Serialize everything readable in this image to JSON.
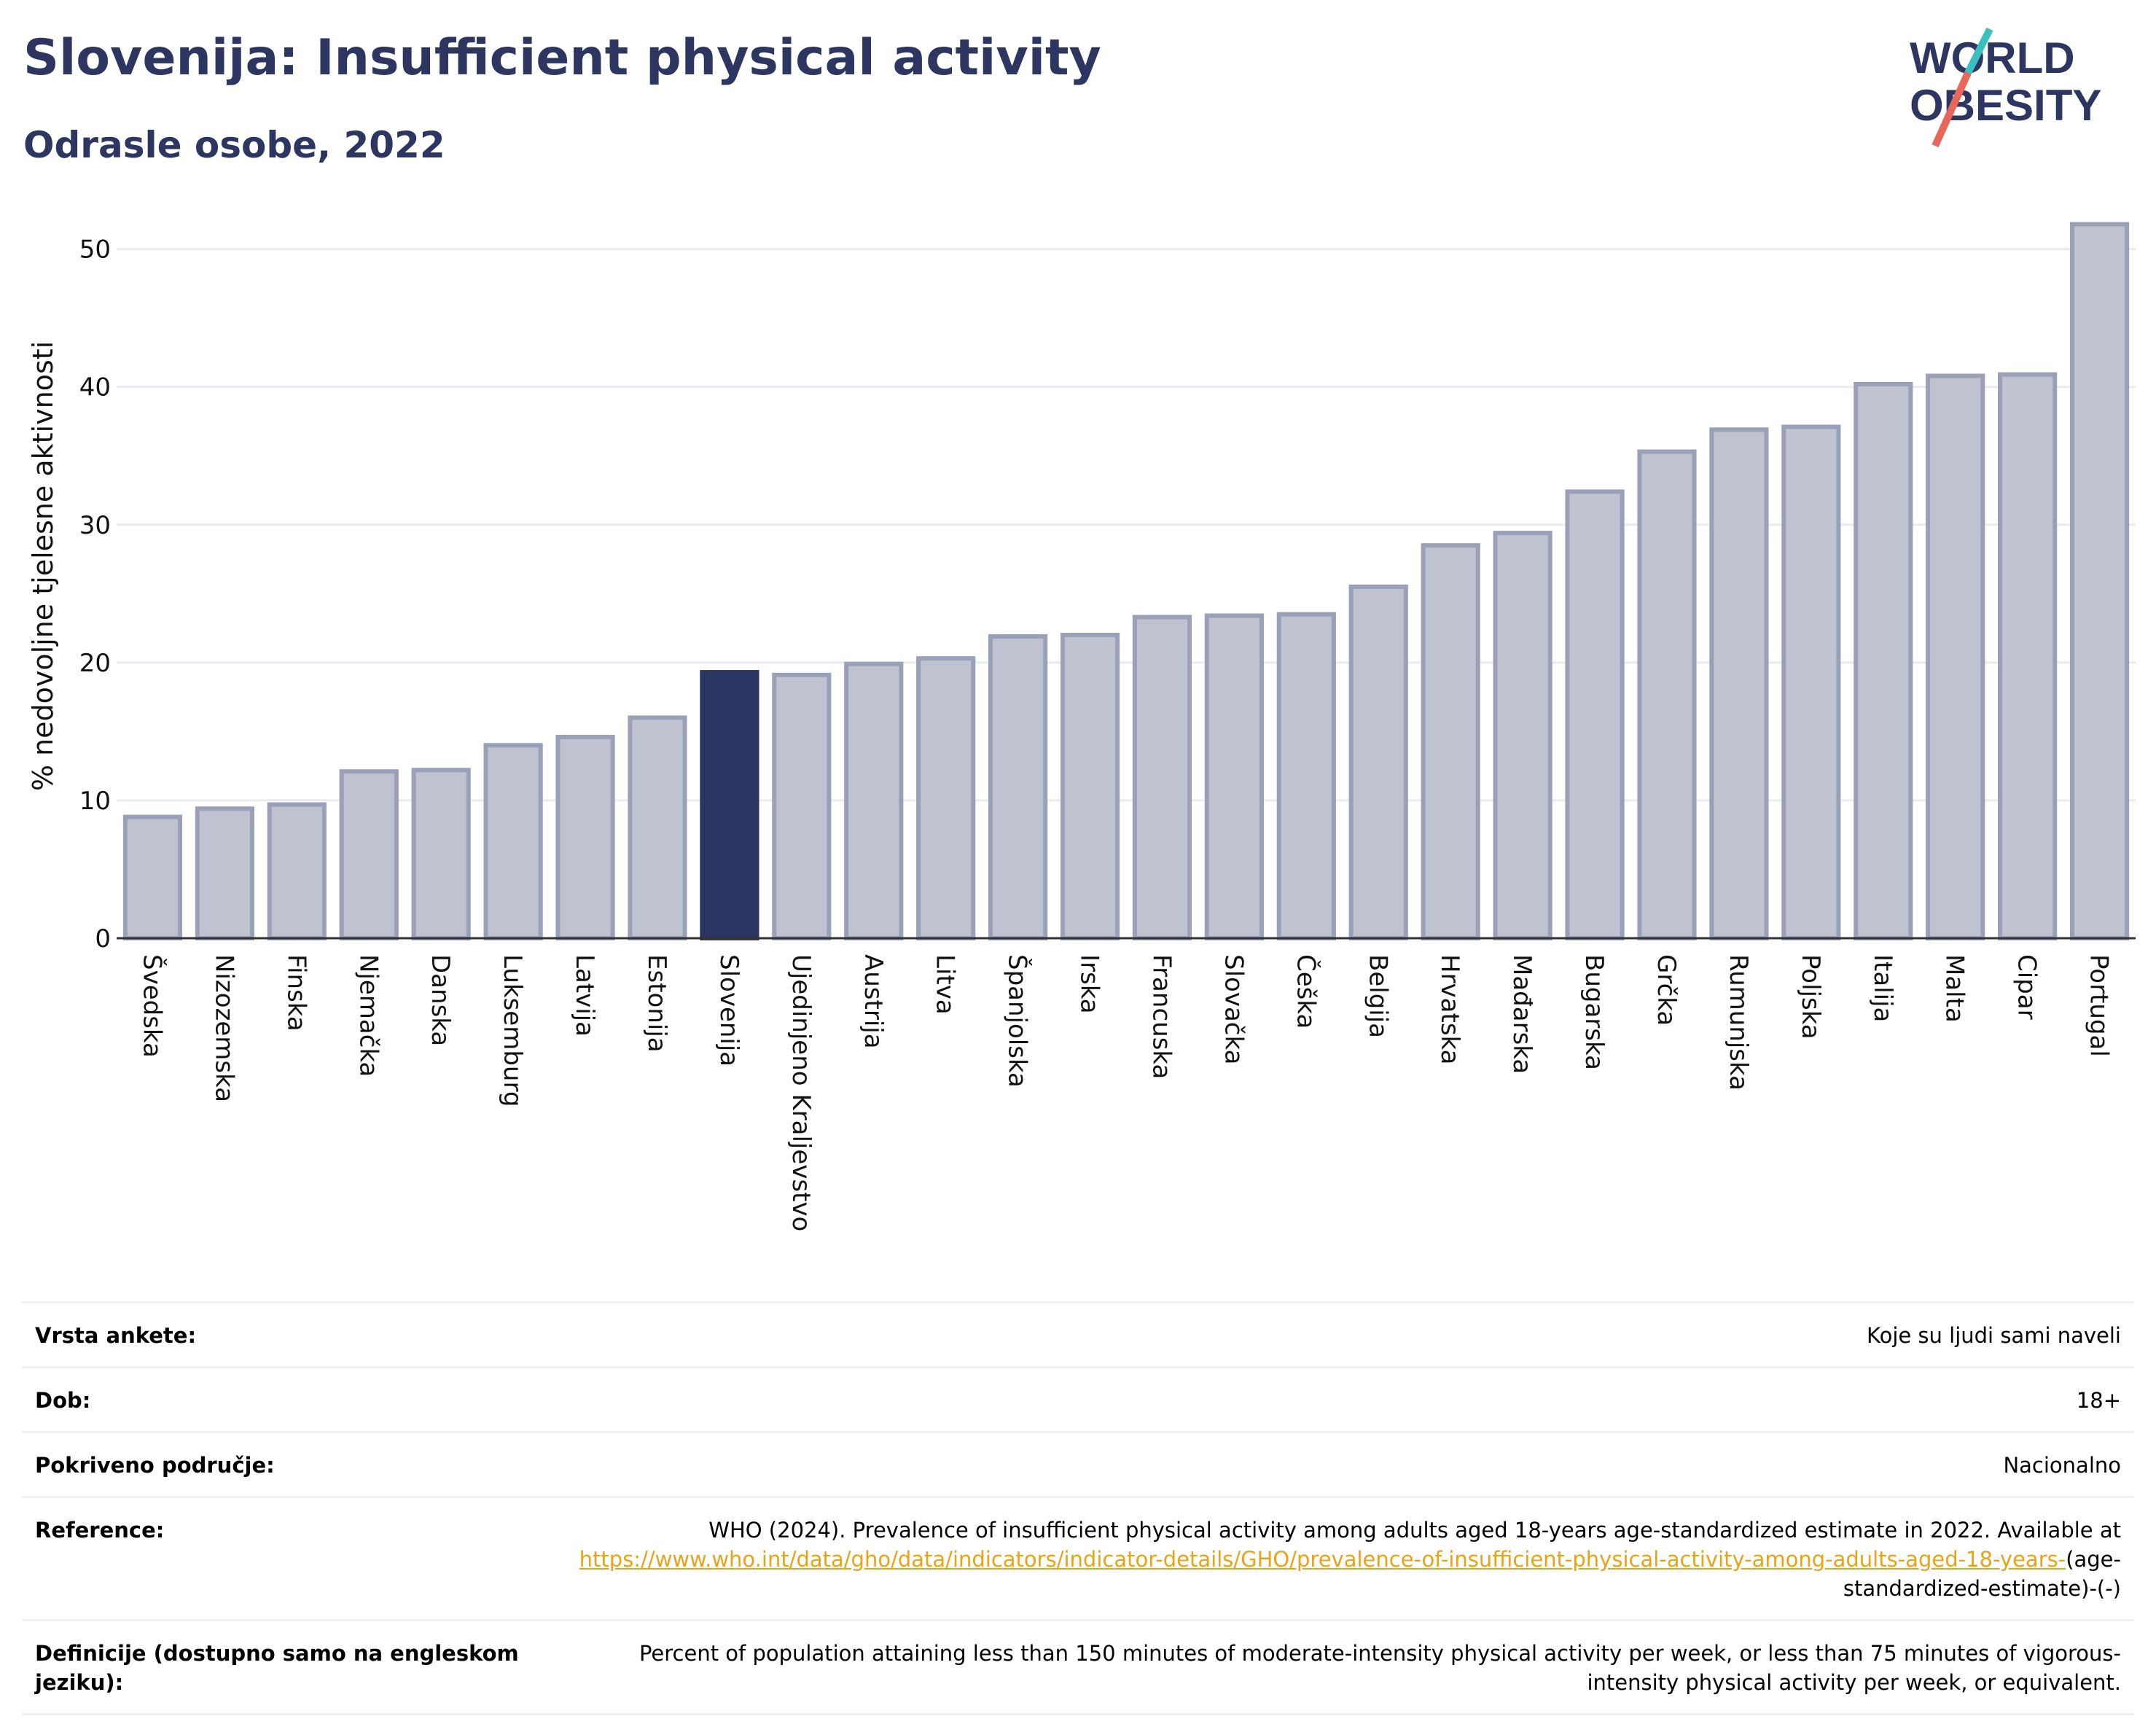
{
  "header": {
    "title": "Slovenija: Insufficient physical activity",
    "subtitle": "Odrasle osobe, 2022"
  },
  "logo": {
    "line1": "WORLD",
    "line2": "OBESITY",
    "colors": {
      "text": "#2d3561",
      "slash_top": "#3bbfbf",
      "slash_bottom": "#e8665a"
    }
  },
  "colors": {
    "bar_fill": "#bfc3d0",
    "bar_stroke": "#9aa0b8",
    "highlight": "#2b3561",
    "grid": "#e9ebf1",
    "axis": "#333333"
  },
  "chart_data": {
    "type": "bar",
    "ylabel": "% nedovoljne tjelesne aktivnosti",
    "ylim": [
      0,
      54
    ],
    "yticks": [
      0,
      10,
      20,
      30,
      40,
      50
    ],
    "grid": true,
    "highlight_category": "Slovenija",
    "categories": [
      "Švedska",
      "Nizozemska",
      "Finska",
      "Njemačka",
      "Danska",
      "Luksemburg",
      "Latvija",
      "Estonija",
      "Slovenija",
      "Ujedinjeno Kraljevstvo",
      "Austrija",
      "Litva",
      "Španjolska",
      "Irska",
      "Francuska",
      "Slovačka",
      "Češka",
      "Belgija",
      "Hrvatska",
      "Mađarska",
      "Bugarska",
      "Grčka",
      "Rumunjska",
      "Poljska",
      "Italija",
      "Malta",
      "Cipar",
      "Portugal"
    ],
    "values": [
      8.8,
      9.4,
      9.7,
      12.1,
      12.2,
      14.0,
      14.6,
      16.0,
      19.3,
      19.1,
      19.9,
      20.3,
      21.9,
      22.0,
      23.3,
      23.4,
      23.5,
      25.5,
      28.5,
      29.4,
      32.4,
      35.3,
      36.9,
      37.1,
      40.2,
      40.8,
      40.9,
      51.8
    ]
  },
  "meta": {
    "rows": [
      {
        "key": "Vrsta ankete:",
        "value": "Koje su ljudi sami naveli"
      },
      {
        "key": "Dob:",
        "value": "18+"
      },
      {
        "key": "Pokriveno područje:",
        "value": "Nacionalno"
      }
    ],
    "reference": {
      "key": "Reference:",
      "text": "WHO (2024). Prevalence of insufficient physical activity among adults aged 18-years age-standardized estimate in 2022. Available at",
      "link": "https://www.who.int/data/gho/data/indicators/indicator-details/GHO/prevalence-of-insufficient-physical-activity-among-adults-aged-18-years-",
      "suffix": "(age-standardized-estimate)-(-)"
    },
    "definition": {
      "key": "Definicije (dostupno samo na engleskom jeziku):",
      "value": "Percent of population attaining less than 150 minutes of moderate-intensity physical activity per week, or less than 75 minutes of vigorous-intensity physical activity per week, or equivalent."
    }
  }
}
